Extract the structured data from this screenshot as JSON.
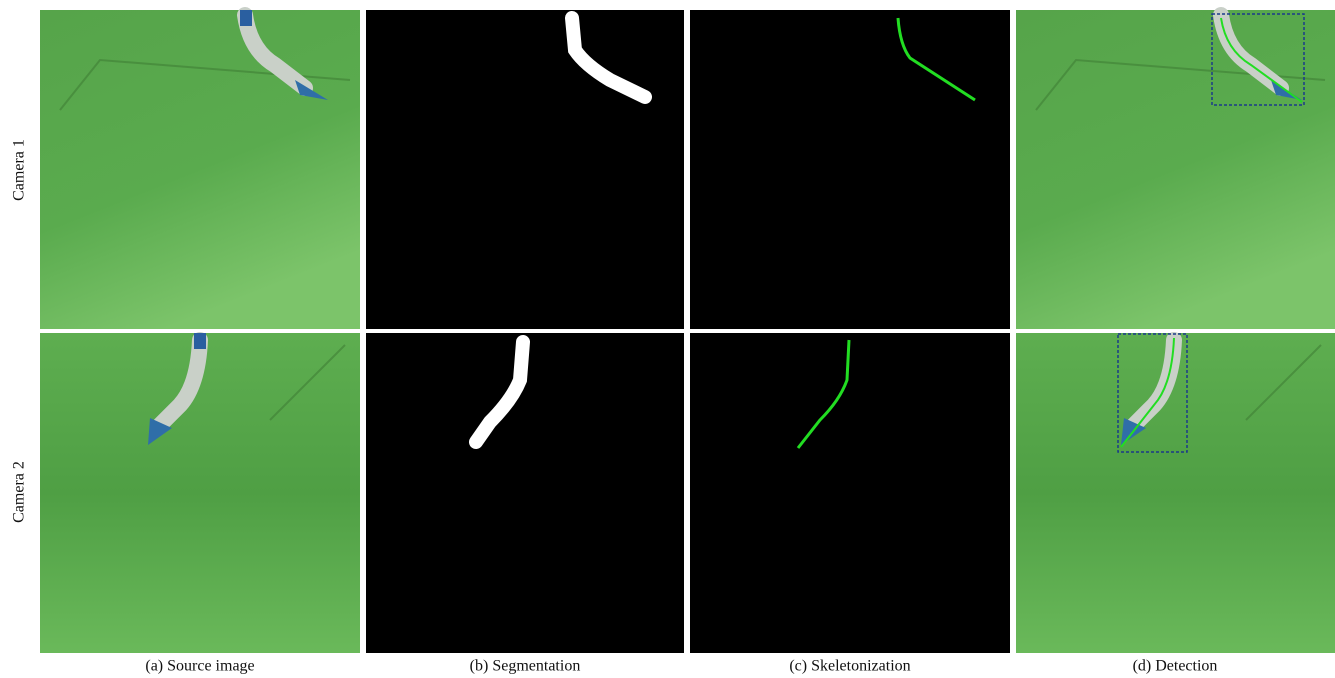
{
  "rows": [
    "Camera 1",
    "Camera 2"
  ],
  "columns": [
    "(a) Source image",
    "(b) Segmentation",
    "(c) Skeletonization",
    "(d) Detection"
  ]
}
